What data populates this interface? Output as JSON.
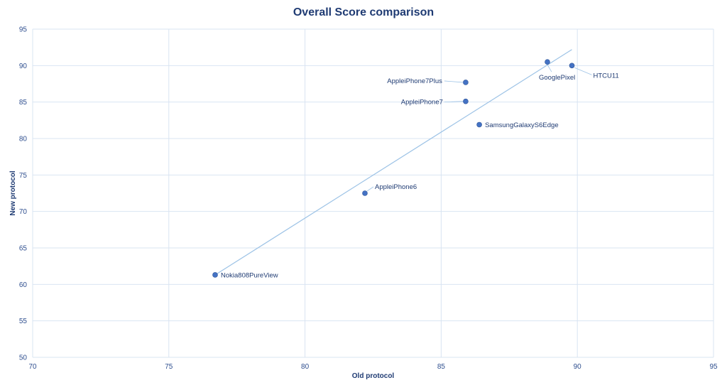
{
  "chart_data": {
    "type": "scatter",
    "title": "Overall Score comparison",
    "xlabel": "Old protocol",
    "ylabel": "New protocol",
    "xlim": [
      70,
      95
    ],
    "ylim": [
      50,
      95
    ],
    "xticks": [
      70,
      75,
      80,
      85,
      90,
      95
    ],
    "yticks": [
      50,
      55,
      60,
      65,
      70,
      75,
      80,
      85,
      90,
      95
    ],
    "grid": true,
    "trendline": {
      "type": "linear",
      "from": [
        76.7,
        61.3
      ],
      "to": [
        89.8,
        92.2
      ]
    },
    "points": [
      {
        "label": "Nokia808PureView",
        "x": 76.7,
        "y": 61.3,
        "label_pos": "right"
      },
      {
        "label": "AppleiPhone6",
        "x": 82.2,
        "y": 72.5,
        "label_pos": "upper-right"
      },
      {
        "label": "AppleiPhone7",
        "x": 85.9,
        "y": 85.1,
        "label_pos": "left"
      },
      {
        "label": "AppleiPhone7Plus",
        "x": 85.9,
        "y": 87.7,
        "label_pos": "upper-left"
      },
      {
        "label": "SamsungGalaxyS6Edge",
        "x": 86.4,
        "y": 81.9,
        "label_pos": "right"
      },
      {
        "label": "GooglePixel",
        "x": 88.9,
        "y": 90.5,
        "label_pos": "below"
      },
      {
        "label": "HTCU11",
        "x": 89.8,
        "y": 90.0,
        "label_pos": "lower-right"
      }
    ],
    "colors": {
      "marker": "#4472c4",
      "trendline": "#9dc3e6",
      "grid": "#d9e4f2",
      "leader": "#9dc3e6"
    }
  }
}
